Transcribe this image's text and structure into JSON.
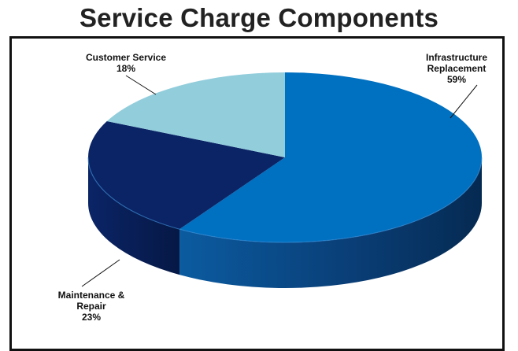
{
  "chart_data": {
    "type": "pie",
    "title": "Service Charge Components",
    "slices": [
      {
        "label": "Infrastructure Replacement",
        "label_lines": [
          "Infrastructure",
          "Replacement"
        ],
        "value": 59,
        "value_text": "59%",
        "color": "#0070C0"
      },
      {
        "label": "Maintenance & Repair",
        "label_lines": [
          "Maintenance &",
          "Repair"
        ],
        "value": 23,
        "value_text": "23%",
        "color": "#0A2466"
      },
      {
        "label": "Customer Service",
        "label_lines": [
          "Customer Service"
        ],
        "value": 18,
        "value_text": "18%",
        "color": "#92CDDC"
      }
    ],
    "style": "3d-pie",
    "legend": "none"
  }
}
